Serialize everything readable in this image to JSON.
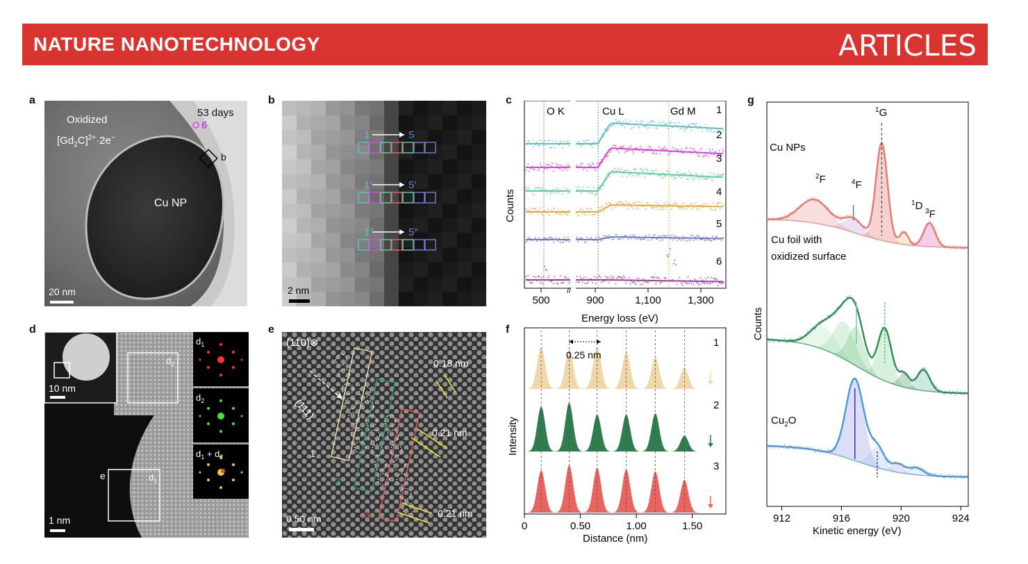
{
  "header": {
    "journal": "NATURE NANOTECHNOLOGY",
    "section": "ARTICLES"
  },
  "panels": {
    "a": {
      "label": "a",
      "oxidized": "Oxidized",
      "formula_base": "[Gd",
      "formula_sub": "2",
      "formula_c": "C]",
      "formula_sup": "2+",
      "formula_tail": "·2e",
      "formula_minus": "−",
      "days": "53 days",
      "point": "6",
      "box": "b",
      "np": "Cu NP",
      "scale": "20 nm"
    },
    "b": {
      "label": "b",
      "scale": "2 nm",
      "row_labels": [
        [
          "1",
          "5"
        ],
        [
          "1′",
          "5′"
        ],
        [
          "1″",
          "5″"
        ]
      ]
    },
    "c": {
      "label": "c",
      "edges": [
        "O K",
        "Cu L",
        "Gd M"
      ],
      "ylabel": "Counts",
      "xlabel": "Energy loss (eV)",
      "ticks": [
        "500",
        "900",
        "1,100",
        "1,300"
      ],
      "curve_labels": [
        "1",
        "2",
        "3",
        "4",
        "5",
        "6"
      ]
    },
    "d": {
      "label": "d",
      "inset_scale": "10 nm",
      "scale": "1 nm",
      "e_box": "e",
      "d1": "d",
      "d1s": "1",
      "d2": "d",
      "d2s": "2",
      "fft": [
        "d1",
        "d2",
        "d1 + d2"
      ]
    },
    "e": {
      "label": "e",
      "zone": "(110)⊗",
      "plane": "(111)",
      "scale": "0.50 nm",
      "spacings": [
        "0.18 nm",
        "0.21 nm",
        "0.21 nm"
      ],
      "rects": [
        "1",
        "2",
        "3"
      ]
    },
    "f": {
      "label": "f",
      "ylabel": "Intensity",
      "xlabel": "Distance (nm)",
      "spacing": "0.25 nm",
      "ticks": [
        "0",
        "0.50",
        "1.00",
        "1.50"
      ],
      "curve_labels": [
        "1",
        "2",
        "3"
      ]
    },
    "g": {
      "label": "g",
      "ylabel": "Counts",
      "xlabel": "Kinetic energy (eV)",
      "ticks": [
        "912",
        "916",
        "920",
        "924"
      ],
      "cu_nps": "Cu NPs",
      "cu_foil_1": "Cu foil with",
      "cu_foil_2": "oxidized surface",
      "cu2o_base": "Cu",
      "cu2o_sub": "2",
      "cu2o_tail": "O",
      "terms": [
        {
          "sup": "1",
          "base": "G"
        },
        {
          "sup": "2",
          "base": "F"
        },
        {
          "sup": "4",
          "base": "F"
        },
        {
          "sup": "1",
          "base": "D"
        },
        {
          "sup": "3",
          "base": "F"
        }
      ]
    }
  },
  "colors": {
    "banner": "#d9342f",
    "c1": "#5bbfc8",
    "c2": "#e040d8",
    "c3": "#5ccf96",
    "c4": "#e8a93c",
    "c5": "#6f78c8",
    "c6": "#a0399c",
    "f1": "#efd7a8",
    "f2": "#2f7d4f",
    "f3": "#e9635f",
    "g_red": "#e47a74",
    "g_green": "#2f8c57",
    "g_blue": "#4a98d6"
  },
  "chart_data": [
    {
      "type": "line",
      "panel": "c",
      "series": [
        {
          "name": "1"
        },
        {
          "name": "2"
        },
        {
          "name": "3"
        },
        {
          "name": "4"
        },
        {
          "name": "5"
        },
        {
          "name": "6"
        }
      ],
      "xlabel": "Energy loss (eV)",
      "ylabel": "Counts",
      "x_ticks": [
        500,
        900,
        1100,
        1300
      ],
      "edges": [
        "O K",
        "Cu L",
        "Gd M"
      ]
    },
    {
      "type": "area",
      "panel": "f",
      "peaks_nm": [
        0.15,
        0.4,
        0.65,
        0.91,
        1.17,
        1.43
      ],
      "xlabel": "Distance (nm)",
      "ylabel": "Intensity",
      "x_ticks": [
        0,
        0.5,
        1.0,
        1.5
      ],
      "xlim": [
        0,
        1.8
      ],
      "series": [
        {
          "name": "1",
          "peak_heights": [
            0.8,
            0.75,
            0.8,
            0.7,
            0.6,
            0.4
          ]
        },
        {
          "name": "2",
          "peak_heights": [
            0.85,
            0.92,
            0.7,
            0.7,
            0.72,
            0.3
          ]
        },
        {
          "name": "3",
          "peak_heights": [
            0.8,
            0.9,
            0.85,
            0.82,
            0.78,
            0.62
          ]
        }
      ]
    },
    {
      "type": "line",
      "panel": "g",
      "xlabel": "Kinetic energy (eV)",
      "ylabel": "Counts",
      "x_ticks": [
        912,
        916,
        920,
        924
      ],
      "xlim": [
        911,
        924.5
      ],
      "series": [
        {
          "name": "Cu NPs"
        },
        {
          "name": "Cu foil with oxidized surface"
        },
        {
          "name": "Cu2O"
        }
      ]
    }
  ]
}
